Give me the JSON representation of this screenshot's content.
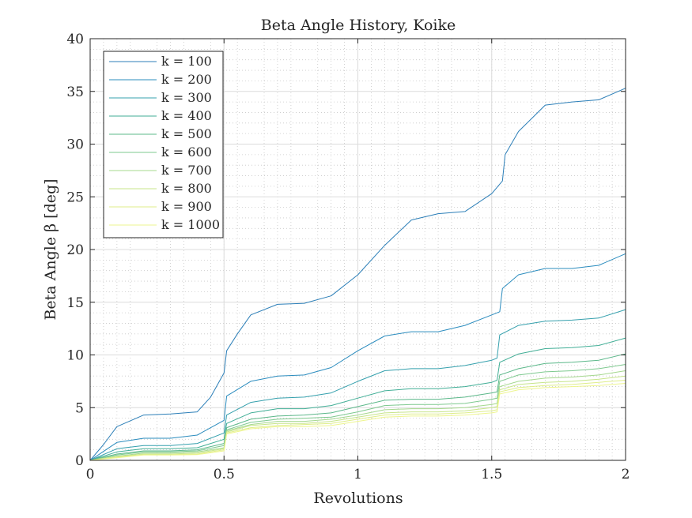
{
  "chart_data": {
    "type": "line",
    "title": "Beta Angle History, Koike",
    "xlabel": "Revolutions",
    "ylabel": "Beta Angle β [deg]",
    "xlim": [
      0,
      2
    ],
    "ylim": [
      0,
      40
    ],
    "xticks": [
      0,
      0.5,
      1,
      1.5,
      2
    ],
    "xtick_labels": [
      "0",
      "0.5",
      "1",
      "1.5",
      "2"
    ],
    "yticks": [
      0,
      5,
      10,
      15,
      20,
      25,
      30,
      35,
      40
    ],
    "ytick_labels": [
      "0",
      "5",
      "10",
      "15",
      "20",
      "25",
      "30",
      "35",
      "40"
    ],
    "grid": true,
    "minor_grid": true,
    "legend_position": "top-left",
    "series": [
      {
        "name": "k = 100",
        "color": "#2c7fb8",
        "x": [
          0,
          0.05,
          0.1,
          0.2,
          0.3,
          0.4,
          0.45,
          0.5,
          0.51,
          0.55,
          0.6,
          0.7,
          0.8,
          0.9,
          1.0,
          1.1,
          1.2,
          1.3,
          1.4,
          1.5,
          1.54,
          1.55,
          1.6,
          1.7,
          1.8,
          1.9,
          2.0
        ],
        "y": [
          0,
          1.5,
          3.2,
          4.3,
          4.4,
          4.6,
          6.0,
          8.3,
          10.4,
          12.0,
          13.8,
          14.8,
          14.9,
          15.6,
          17.6,
          20.4,
          22.8,
          23.4,
          23.6,
          25.3,
          26.5,
          29.0,
          31.2,
          33.7,
          34.0,
          34.2,
          35.3
        ]
      },
      {
        "name": "k = 200",
        "color": "#2b8cbe",
        "x": [
          0,
          0.1,
          0.2,
          0.3,
          0.4,
          0.5,
          0.51,
          0.6,
          0.7,
          0.8,
          0.9,
          1.0,
          1.1,
          1.2,
          1.3,
          1.4,
          1.5,
          1.53,
          1.54,
          1.6,
          1.7,
          1.8,
          1.9,
          2.0
        ],
        "y": [
          0,
          1.7,
          2.1,
          2.1,
          2.4,
          3.8,
          6.1,
          7.5,
          8.0,
          8.1,
          8.8,
          10.4,
          11.8,
          12.2,
          12.2,
          12.8,
          13.8,
          14.1,
          16.3,
          17.6,
          18.2,
          18.2,
          18.5,
          19.6
        ]
      },
      {
        "name": "k = 300",
        "color": "#35a0ad",
        "x": [
          0,
          0.1,
          0.2,
          0.3,
          0.4,
          0.5,
          0.51,
          0.6,
          0.7,
          0.8,
          0.9,
          1.0,
          1.1,
          1.2,
          1.3,
          1.4,
          1.5,
          1.52,
          1.53,
          1.6,
          1.7,
          1.8,
          1.9,
          2.0
        ],
        "y": [
          0,
          1.1,
          1.4,
          1.4,
          1.6,
          2.6,
          4.3,
          5.5,
          5.9,
          6.0,
          6.4,
          7.5,
          8.5,
          8.7,
          8.7,
          9.0,
          9.5,
          9.7,
          11.9,
          12.8,
          13.2,
          13.3,
          13.5,
          14.3
        ]
      },
      {
        "name": "k = 400",
        "color": "#41ae96",
        "x": [
          0,
          0.1,
          0.2,
          0.3,
          0.4,
          0.5,
          0.51,
          0.6,
          0.7,
          0.8,
          0.9,
          1.0,
          1.1,
          1.2,
          1.3,
          1.4,
          1.5,
          1.52,
          1.53,
          1.6,
          1.7,
          1.8,
          1.9,
          2.0
        ],
        "y": [
          0,
          0.8,
          1.1,
          1.1,
          1.2,
          2.0,
          3.5,
          4.5,
          4.9,
          4.9,
          5.2,
          5.9,
          6.6,
          6.8,
          6.8,
          7.0,
          7.4,
          7.6,
          9.3,
          10.1,
          10.6,
          10.7,
          10.9,
          11.6
        ]
      },
      {
        "name": "k = 500",
        "color": "#5cb88a",
        "x": [
          0,
          0.1,
          0.2,
          0.3,
          0.4,
          0.5,
          0.51,
          0.6,
          0.7,
          0.8,
          0.9,
          1.0,
          1.1,
          1.2,
          1.3,
          1.4,
          1.5,
          1.52,
          1.53,
          1.6,
          1.7,
          1.8,
          1.9,
          2.0
        ],
        "y": [
          0,
          0.6,
          0.9,
          0.9,
          1.0,
          1.6,
          3.1,
          3.9,
          4.2,
          4.3,
          4.5,
          5.1,
          5.7,
          5.8,
          5.8,
          6.0,
          6.4,
          6.5,
          8.1,
          8.7,
          9.2,
          9.3,
          9.5,
          10.1
        ]
      },
      {
        "name": "k = 600",
        "color": "#7ec98f",
        "x": [
          0,
          0.1,
          0.2,
          0.3,
          0.4,
          0.5,
          0.51,
          0.6,
          0.7,
          0.8,
          0.9,
          1.0,
          1.1,
          1.2,
          1.3,
          1.4,
          1.5,
          1.52,
          1.53,
          1.6,
          1.7,
          1.8,
          1.9,
          2.0
        ],
        "y": [
          0,
          0.5,
          0.8,
          0.8,
          0.9,
          1.4,
          2.9,
          3.6,
          3.9,
          4.0,
          4.1,
          4.6,
          5.2,
          5.3,
          5.3,
          5.4,
          5.8,
          5.9,
          7.5,
          8.1,
          8.4,
          8.5,
          8.7,
          9.1
        ]
      },
      {
        "name": "k = 700",
        "color": "#a5d88e",
        "x": [
          0,
          0.1,
          0.2,
          0.3,
          0.4,
          0.5,
          0.51,
          0.6,
          0.7,
          0.8,
          0.9,
          1.0,
          1.1,
          1.2,
          1.3,
          1.4,
          1.5,
          1.52,
          1.53,
          1.6,
          1.7,
          1.8,
          1.9,
          2.0
        ],
        "y": [
          0,
          0.4,
          0.7,
          0.7,
          0.8,
          1.2,
          2.8,
          3.4,
          3.7,
          3.7,
          3.9,
          4.3,
          4.8,
          4.9,
          4.9,
          5.0,
          5.3,
          5.4,
          7.0,
          7.5,
          7.8,
          7.9,
          8.1,
          8.5
        ]
      },
      {
        "name": "k = 800",
        "color": "#c7e58a",
        "x": [
          0,
          0.1,
          0.2,
          0.3,
          0.4,
          0.5,
          0.51,
          0.6,
          0.7,
          0.8,
          0.9,
          1.0,
          1.1,
          1.2,
          1.3,
          1.4,
          1.5,
          1.52,
          1.53,
          1.6,
          1.7,
          1.8,
          1.9,
          2.0
        ],
        "y": [
          0,
          0.35,
          0.6,
          0.6,
          0.7,
          1.1,
          2.7,
          3.3,
          3.5,
          3.5,
          3.7,
          4.1,
          4.5,
          4.6,
          4.6,
          4.7,
          5.0,
          5.1,
          6.7,
          7.2,
          7.4,
          7.5,
          7.7,
          8.0
        ]
      },
      {
        "name": "k = 900",
        "color": "#dfee8a",
        "x": [
          0,
          0.1,
          0.2,
          0.3,
          0.4,
          0.5,
          0.51,
          0.6,
          0.7,
          0.8,
          0.9,
          1.0,
          1.1,
          1.2,
          1.3,
          1.4,
          1.5,
          1.52,
          1.53,
          1.6,
          1.7,
          1.8,
          1.9,
          2.0
        ],
        "y": [
          0,
          0.3,
          0.55,
          0.55,
          0.6,
          1.0,
          2.6,
          3.1,
          3.3,
          3.4,
          3.5,
          3.9,
          4.3,
          4.4,
          4.4,
          4.5,
          4.7,
          4.8,
          6.5,
          6.9,
          7.1,
          7.2,
          7.4,
          7.6
        ]
      },
      {
        "name": "k = 1000",
        "color": "#eef58f",
        "x": [
          0,
          0.1,
          0.2,
          0.3,
          0.4,
          0.5,
          0.51,
          0.6,
          0.7,
          0.8,
          0.9,
          1.0,
          1.1,
          1.2,
          1.3,
          1.4,
          1.5,
          1.52,
          1.53,
          1.6,
          1.7,
          1.8,
          1.9,
          2.0
        ],
        "y": [
          0,
          0.25,
          0.5,
          0.5,
          0.55,
          0.9,
          2.5,
          3.0,
          3.2,
          3.2,
          3.3,
          3.7,
          4.1,
          4.2,
          4.2,
          4.3,
          4.5,
          4.6,
          6.3,
          6.7,
          6.9,
          7.0,
          7.1,
          7.3
        ]
      }
    ]
  }
}
